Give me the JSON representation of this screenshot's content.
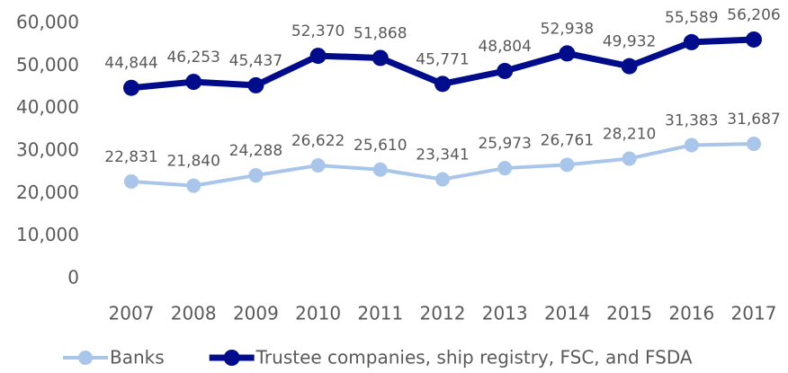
{
  "chart_data": {
    "type": "line",
    "categories": [
      "2007",
      "2008",
      "2009",
      "2010",
      "2011",
      "2012",
      "2013",
      "2014",
      "2015",
      "2016",
      "2017"
    ],
    "series": [
      {
        "name": "Banks",
        "color": "#a9c5e9",
        "values": [
          22831,
          21840,
          24288,
          26622,
          25610,
          23341,
          25973,
          26761,
          28210,
          31383,
          31687
        ],
        "value_labels": [
          "22,831",
          "21,840",
          "24,288",
          "26,622",
          "25,610",
          "23,341",
          "25,973",
          "26,761",
          "28,210",
          "31,383",
          "31,687"
        ]
      },
      {
        "name": "Trustee companies, ship registry, FSC, and FSDA",
        "color": "#000c8a",
        "values": [
          44844,
          46253,
          45437,
          52370,
          51868,
          45771,
          48804,
          52938,
          49932,
          55589,
          56206
        ],
        "value_labels": [
          "44,844",
          "46,253",
          "45,437",
          "52,370",
          "51,868",
          "45,771",
          "48,804",
          "52,938",
          "49,932",
          "55,589",
          "56,206"
        ]
      }
    ],
    "ylim": [
      0,
      60000
    ],
    "yticks": [
      0,
      {
        "value": 10000,
        "label": "10,000"
      },
      {
        "value": 20000,
        "label": "20,000"
      },
      {
        "value": 30000,
        "label": "30,000"
      },
      {
        "value": 40000,
        "label": "40,000"
      },
      {
        "value": 50000,
        "label": "50,000"
      },
      {
        "value": 60000,
        "label": "60,000"
      }
    ],
    "grid": false,
    "legend": "bottom"
  }
}
